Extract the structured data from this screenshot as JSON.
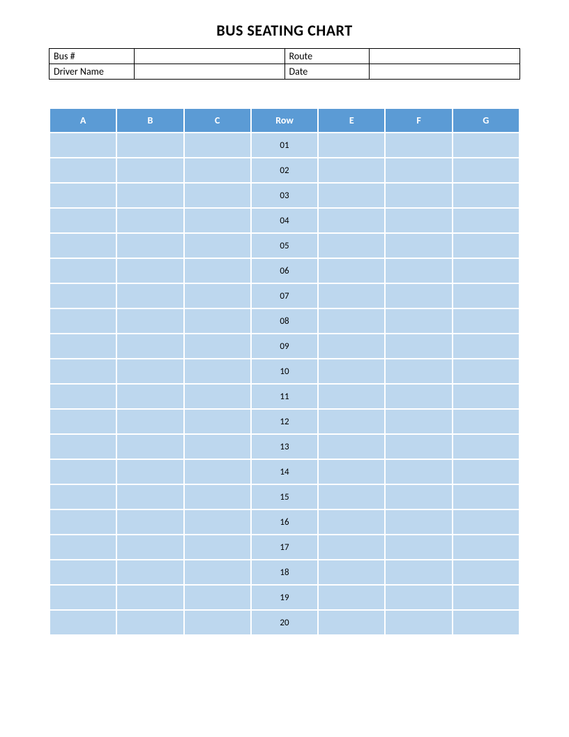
{
  "title": "BUS SEATING CHART",
  "info": {
    "fields": [
      {
        "label": "Bus #",
        "value": ""
      },
      {
        "label": "Route",
        "value": ""
      },
      {
        "label": "Driver Name",
        "value": ""
      },
      {
        "label": "Date",
        "value": ""
      }
    ]
  },
  "seating": {
    "type": "table",
    "columns": [
      "A",
      "B",
      "C",
      "Row",
      "E",
      "F",
      "G"
    ],
    "row_label_column_index": 3,
    "rows": [
      {
        "A": "",
        "B": "",
        "C": "",
        "Row": "01",
        "E": "",
        "F": "",
        "G": ""
      },
      {
        "A": "",
        "B": "",
        "C": "",
        "Row": "02",
        "E": "",
        "F": "",
        "G": ""
      },
      {
        "A": "",
        "B": "",
        "C": "",
        "Row": "03",
        "E": "",
        "F": "",
        "G": ""
      },
      {
        "A": "",
        "B": "",
        "C": "",
        "Row": "04",
        "E": "",
        "F": "",
        "G": ""
      },
      {
        "A": "",
        "B": "",
        "C": "",
        "Row": "05",
        "E": "",
        "F": "",
        "G": ""
      },
      {
        "A": "",
        "B": "",
        "C": "",
        "Row": "06",
        "E": "",
        "F": "",
        "G": ""
      },
      {
        "A": "",
        "B": "",
        "C": "",
        "Row": "07",
        "E": "",
        "F": "",
        "G": ""
      },
      {
        "A": "",
        "B": "",
        "C": "",
        "Row": "08",
        "E": "",
        "F": "",
        "G": ""
      },
      {
        "A": "",
        "B": "",
        "C": "",
        "Row": "09",
        "E": "",
        "F": "",
        "G": ""
      },
      {
        "A": "",
        "B": "",
        "C": "",
        "Row": "10",
        "E": "",
        "F": "",
        "G": ""
      },
      {
        "A": "",
        "B": "",
        "C": "",
        "Row": "11",
        "E": "",
        "F": "",
        "G": ""
      },
      {
        "A": "",
        "B": "",
        "C": "",
        "Row": "12",
        "E": "",
        "F": "",
        "G": ""
      },
      {
        "A": "",
        "B": "",
        "C": "",
        "Row": "13",
        "E": "",
        "F": "",
        "G": ""
      },
      {
        "A": "",
        "B": "",
        "C": "",
        "Row": "14",
        "E": "",
        "F": "",
        "G": ""
      },
      {
        "A": "",
        "B": "",
        "C": "",
        "Row": "15",
        "E": "",
        "F": "",
        "G": ""
      },
      {
        "A": "",
        "B": "",
        "C": "",
        "Row": "16",
        "E": "",
        "F": "",
        "G": ""
      },
      {
        "A": "",
        "B": "",
        "C": "",
        "Row": "17",
        "E": "",
        "F": "",
        "G": ""
      },
      {
        "A": "",
        "B": "",
        "C": "",
        "Row": "18",
        "E": "",
        "F": "",
        "G": ""
      },
      {
        "A": "",
        "B": "",
        "C": "",
        "Row": "19",
        "E": "",
        "F": "",
        "G": ""
      },
      {
        "A": "",
        "B": "",
        "C": "",
        "Row": "20",
        "E": "",
        "F": "",
        "G": ""
      }
    ],
    "header_bg_color": "#5b9bd5",
    "header_text_color": "#ffffff",
    "cell_bg_color": "#bdd7ee",
    "cell_text_color": "#000000",
    "border_spacing": 2,
    "header_fontsize": 14,
    "cell_fontsize": 13
  },
  "colors": {
    "page_bg": "#ffffff",
    "border": "#000000"
  }
}
